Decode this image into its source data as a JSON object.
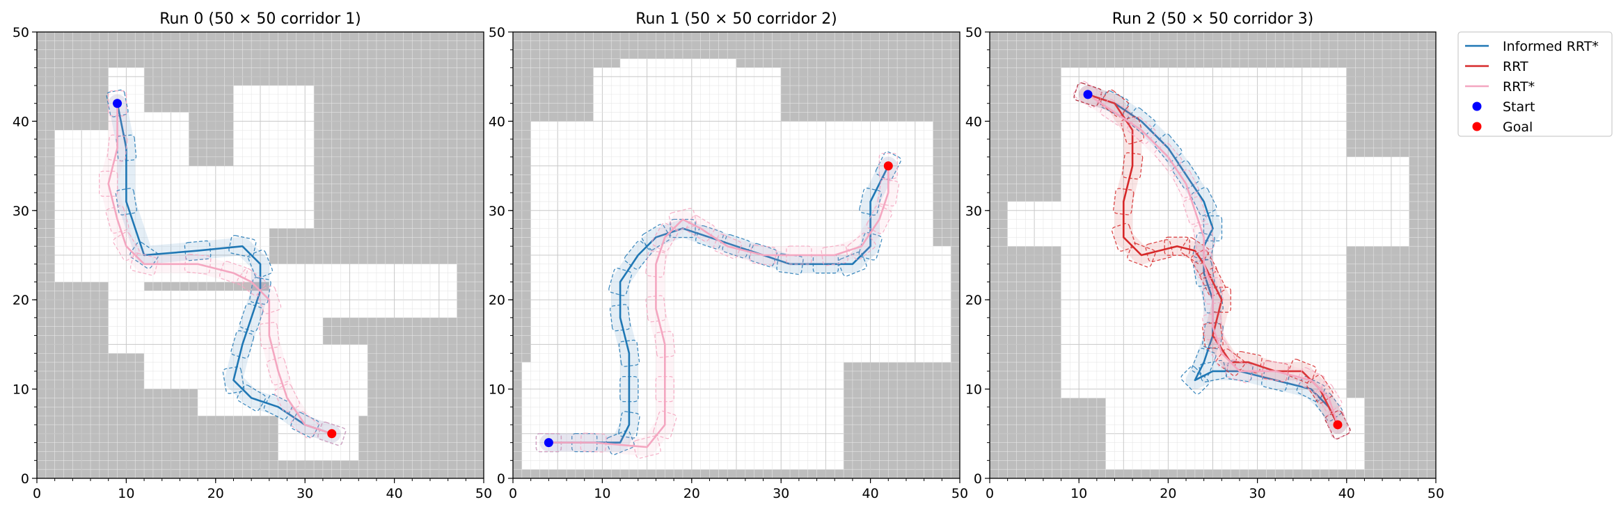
{
  "chart_data": [
    {
      "type": "line",
      "title": "Run 0 (50 × 50 corridor 1)",
      "xlim": [
        0,
        50
      ],
      "ylim": [
        0,
        50
      ],
      "xticks": [
        "0",
        "10",
        "20",
        "30",
        "40",
        "50"
      ],
      "yticks": [
        "0",
        "10",
        "20",
        "30",
        "40",
        "50"
      ],
      "grid": true,
      "free_space": [
        [
          8,
          14,
          12,
          46
        ],
        [
          2,
          22,
          8,
          39
        ],
        [
          11,
          30,
          17,
          41
        ],
        [
          11,
          22,
          23,
          35
        ],
        [
          23,
          22,
          26,
          35
        ],
        [
          26,
          18,
          47,
          24
        ],
        [
          22,
          28,
          31,
          44
        ],
        [
          12,
          10,
          32,
          21
        ],
        [
          18,
          7,
          37,
          15
        ],
        [
          27,
          2,
          36,
          8
        ]
      ],
      "start": [
        9,
        42
      ],
      "goal": [
        33,
        5
      ],
      "series": [
        {
          "name": "Informed RRT*",
          "color": "#1f77b4",
          "x": [
            9,
            10,
            10,
            12,
            18,
            23,
            25,
            25,
            24,
            23,
            22,
            24,
            27,
            30,
            33
          ],
          "y": [
            42,
            37,
            31,
            25,
            25.5,
            26,
            24,
            21,
            18,
            15,
            11,
            9,
            8,
            6,
            5
          ]
        },
        {
          "name": "RRT*",
          "color": "#f4a6c0",
          "x": [
            9,
            9,
            8,
            9,
            10,
            12,
            18,
            22,
            24,
            26,
            26,
            27,
            28,
            30,
            33
          ],
          "y": [
            42,
            37,
            33,
            29,
            26,
            24,
            24,
            23,
            22,
            20,
            16,
            12,
            9,
            6,
            5
          ]
        }
      ]
    },
    {
      "type": "line",
      "title": "Run 1 (50 × 50 corridor 2)",
      "xlim": [
        0,
        50
      ],
      "ylim": [
        0,
        50
      ],
      "xticks": [
        "0",
        "10",
        "20",
        "30",
        "40",
        "50"
      ],
      "yticks": [
        "0",
        "10",
        "20",
        "30",
        "40",
        "50"
      ],
      "grid": true,
      "free_space": [
        [
          1,
          1,
          37,
          13
        ],
        [
          2,
          13,
          49,
          26
        ],
        [
          2,
          26,
          47,
          40
        ],
        [
          9,
          39,
          30,
          46
        ],
        [
          12,
          43,
          25,
          47
        ]
      ],
      "start": [
        4,
        4
      ],
      "goal": [
        42,
        35
      ],
      "series": [
        {
          "name": "Informed RRT*",
          "color": "#1f77b4",
          "x": [
            4,
            8,
            12,
            13,
            13,
            13,
            12,
            12,
            14,
            16,
            19,
            22,
            25,
            28,
            31,
            35,
            38,
            40,
            40,
            42
          ],
          "y": [
            4,
            4,
            4,
            6,
            10,
            14,
            18,
            22,
            25,
            27,
            28,
            27,
            26,
            25,
            24,
            24,
            24,
            26,
            31,
            35
          ]
        },
        {
          "name": "RRT*",
          "color": "#f4a6c0",
          "x": [
            4,
            9,
            15,
            17,
            17,
            17,
            16,
            16,
            17,
            19,
            21,
            24,
            28,
            32,
            36,
            39,
            41,
            42,
            42
          ],
          "y": [
            4,
            4,
            3.5,
            6,
            10,
            15,
            19,
            24,
            27,
            29,
            28,
            26,
            25,
            25,
            25,
            26,
            29,
            32,
            35
          ]
        }
      ]
    },
    {
      "type": "line",
      "title": "Run 2 (50 × 50 corridor 3)",
      "xlim": [
        0,
        50
      ],
      "ylim": [
        0,
        50
      ],
      "xticks": [
        "0",
        "10",
        "20",
        "30",
        "40",
        "50"
      ],
      "yticks": [
        "0",
        "10",
        "20",
        "30",
        "40",
        "50"
      ],
      "grid": true,
      "free_space": [
        [
          2,
          26,
          20,
          31
        ],
        [
          8,
          9,
          40,
          46
        ],
        [
          10,
          31,
          38,
          38
        ],
        [
          13,
          1,
          42,
          9
        ],
        [
          20,
          26,
          47,
          36
        ]
      ],
      "start": [
        11,
        43
      ],
      "goal": [
        39,
        6
      ],
      "series": [
        {
          "name": "Informed RRT*",
          "color": "#1f77b4",
          "x": [
            11,
            14,
            17,
            20,
            22,
            24,
            25,
            24,
            24,
            25,
            25,
            24,
            23,
            25,
            28,
            32,
            36,
            38,
            39
          ],
          "y": [
            43,
            42,
            40,
            37,
            34,
            31,
            28,
            26,
            23,
            20,
            16,
            13,
            11,
            12,
            12,
            11,
            10,
            8,
            6
          ]
        },
        {
          "name": "RRT",
          "color": "#d62728",
          "x": [
            11,
            14,
            16,
            16,
            15,
            15,
            17,
            19,
            21,
            23,
            24,
            25,
            26,
            25,
            27,
            29,
            32,
            35,
            37,
            39
          ],
          "y": [
            43,
            42,
            39,
            35,
            31,
            27,
            25,
            25.5,
            26,
            25.5,
            24,
            22,
            20,
            16,
            13,
            13,
            12,
            12,
            10,
            6
          ]
        },
        {
          "name": "RRT*",
          "color": "#f4a6c0",
          "x": [
            11,
            14,
            17,
            20,
            22,
            23,
            24,
            24,
            25,
            25,
            26,
            28,
            32,
            36,
            38,
            39
          ],
          "y": [
            43,
            41,
            39,
            36,
            33,
            30,
            27,
            24,
            21,
            17,
            14,
            12,
            12,
            11,
            9,
            6
          ]
        }
      ]
    }
  ],
  "legend": {
    "placement": "outside-right",
    "entries": [
      {
        "label": "Informed RRT*",
        "marker": "line",
        "color": "#1f77b4"
      },
      {
        "label": "RRT",
        "marker": "line",
        "color": "#d62728"
      },
      {
        "label": "RRT*",
        "marker": "line",
        "color": "#f4a6c0"
      },
      {
        "label": "Start",
        "marker": "dot",
        "color": "#0000ff"
      },
      {
        "label": "Goal",
        "marker": "dot",
        "color": "#ff0000"
      }
    ]
  },
  "colors": {
    "obstacle": "#bdbdbd",
    "free": "#ffffff",
    "grid": "#d9d9d9"
  }
}
